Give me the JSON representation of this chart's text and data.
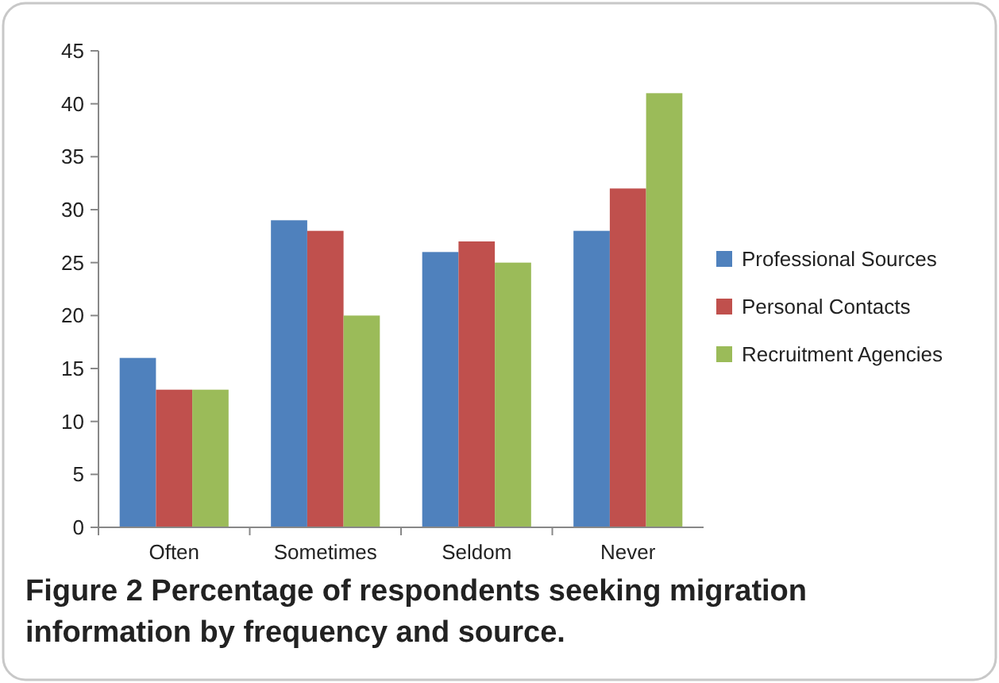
{
  "chart_data": {
    "type": "bar",
    "title": "Figure 2 Percentage of respondents seeking migration information by frequency and source.",
    "categories": [
      "Often",
      "Sometimes",
      "Seldom",
      "Never"
    ],
    "series": [
      {
        "name": "Professional Sources",
        "color": "#4f81bd",
        "values": [
          16,
          29,
          26,
          28
        ]
      },
      {
        "name": "Personal Contacts",
        "color": "#c0504d",
        "values": [
          13,
          28,
          27,
          32
        ]
      },
      {
        "name": "Recruitment Agencies",
        "color": "#9bbb59",
        "values": [
          13,
          20,
          25,
          41
        ]
      }
    ],
    "ylim": [
      0,
      45
    ],
    "yticks": [
      0,
      5,
      10,
      15,
      20,
      25,
      30,
      35,
      40,
      45
    ],
    "legend": "right"
  }
}
